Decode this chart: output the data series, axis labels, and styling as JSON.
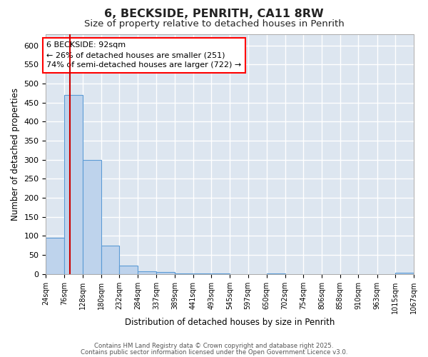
{
  "title": "6, BECKSIDE, PENRITH, CA11 8RW",
  "subtitle": "Size of property relative to detached houses in Penrith",
  "xlabel": "Distribution of detached houses by size in Penrith",
  "ylabel": "Number of detached properties",
  "bar_color": "#bed3ec",
  "bar_edge_color": "#5b9bd5",
  "background_color": "#dde6f0",
  "grid_color": "#ffffff",
  "bins": [
    24,
    76,
    128,
    180,
    232,
    284,
    337,
    389,
    441,
    493,
    545,
    597,
    650,
    702,
    754,
    806,
    858,
    910,
    963,
    1015,
    1067
  ],
  "bin_labels": [
    "24sqm",
    "76sqm",
    "128sqm",
    "180sqm",
    "232sqm",
    "284sqm",
    "337sqm",
    "389sqm",
    "441sqm",
    "493sqm",
    "545sqm",
    "597sqm",
    "650sqm",
    "702sqm",
    "754sqm",
    "806sqm",
    "858sqm",
    "910sqm",
    "963sqm",
    "1015sqm",
    "1067sqm"
  ],
  "values": [
    95,
    470,
    300,
    75,
    22,
    8,
    5,
    2,
    1,
    1,
    0,
    0,
    2,
    0,
    0,
    0,
    0,
    0,
    0,
    3
  ],
  "property_size": 92,
  "red_line_color": "#cc0000",
  "annotation_text": "6 BECKSIDE: 92sqm\n← 26% of detached houses are smaller (251)\n74% of semi-detached houses are larger (722) →",
  "annotation_fontsize": 8.0,
  "ylim": [
    0,
    630
  ],
  "yticks": [
    0,
    50,
    100,
    150,
    200,
    250,
    300,
    350,
    400,
    450,
    500,
    550,
    600
  ],
  "footer_line1": "Contains HM Land Registry data © Crown copyright and database right 2025.",
  "footer_line2": "Contains public sector information licensed under the Open Government Licence v3.0.",
  "title_fontsize": 11.5,
  "subtitle_fontsize": 9.5,
  "xlabel_fontsize": 8.5,
  "ylabel_fontsize": 8.5
}
